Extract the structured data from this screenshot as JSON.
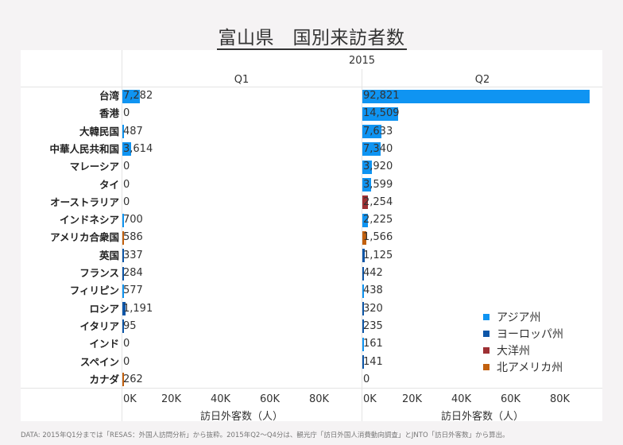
{
  "title": "富山県　国別来訪者数",
  "header": {
    "year": "2015",
    "quarters": [
      "Q1",
      "Q2"
    ]
  },
  "colors": {
    "asia": "#0f94f2",
    "europe": "#0d56a8",
    "oceania": "#9e3034",
    "north_america": "#c2600e"
  },
  "legend": [
    {
      "label": "アジア州",
      "key": "asia",
      "color": "#0f94f2"
    },
    {
      "label": "ヨーロッパ州",
      "key": "europe",
      "color": "#0d56a8"
    },
    {
      "label": "大洋州",
      "key": "oceania",
      "color": "#9e3034"
    },
    {
      "label": "北アメリカ州",
      "key": "north_america",
      "color": "#c2600e"
    }
  ],
  "axis": {
    "ticks": [
      "0K",
      "20K",
      "40K",
      "60K",
      "80K"
    ],
    "title": "訪日外客数（人）"
  },
  "footer": "DATA: 2015年Q1分までは「RESAS：外国人訪問分析」から抜粋。2015年Q2～Q4分は、観光庁「訪日外国人消費動向調査」とJNTO「訪日外客数」から算出。",
  "chart_data": {
    "type": "bar",
    "orientation": "horizontal",
    "title": "富山県　国別来訪者数",
    "column_header": "2015",
    "categories": [
      "台湾",
      "香港",
      "大韓民国",
      "中華人民共和国",
      "マレーシア",
      "タイ",
      "オーストラリア",
      "インドネシア",
      "アメリカ合衆国",
      "英国",
      "フランス",
      "フィリピン",
      "ロシア",
      "イタリア",
      "インド",
      "スペイン",
      "カナダ"
    ],
    "regions": [
      "asia",
      "asia",
      "asia",
      "asia",
      "asia",
      "asia",
      "oceania",
      "asia",
      "north_america",
      "europe",
      "europe",
      "asia",
      "europe",
      "europe",
      "asia",
      "europe",
      "north_america"
    ],
    "series": [
      {
        "name": "Q1",
        "values": [
          7282,
          0,
          487,
          3614,
          0,
          0,
          0,
          700,
          586,
          337,
          284,
          577,
          1191,
          95,
          0,
          0,
          262
        ],
        "labels": [
          "7,282",
          "0",
          "487",
          "3,614",
          "0",
          "0",
          "0",
          "700",
          "586",
          "337",
          "284",
          "577",
          "1,191",
          "95",
          "0",
          "0",
          "262"
        ]
      },
      {
        "name": "Q2",
        "values": [
          92821,
          14509,
          7633,
          7340,
          3920,
          3599,
          2254,
          2225,
          1566,
          1125,
          442,
          438,
          320,
          235,
          161,
          141,
          0
        ],
        "labels": [
          "92,821",
          "14,509",
          "7,633",
          "7,340",
          "3,920",
          "3,599",
          "2,254",
          "2,225",
          "1,566",
          "1,125",
          "442",
          "438",
          "320",
          "235",
          "161",
          "141",
          "0"
        ]
      }
    ],
    "xlabel": "訪日外客数（人）",
    "ylabel": "",
    "xlim": [
      0,
      95000
    ],
    "xticks": [
      "0K",
      "20K",
      "40K",
      "60K",
      "80K"
    ],
    "legend": [
      "アジア州",
      "ヨーロッパ州",
      "大洋州",
      "北アメリカ州"
    ],
    "legend_position": "bottom-right inside Q2 pane",
    "grid": false
  }
}
